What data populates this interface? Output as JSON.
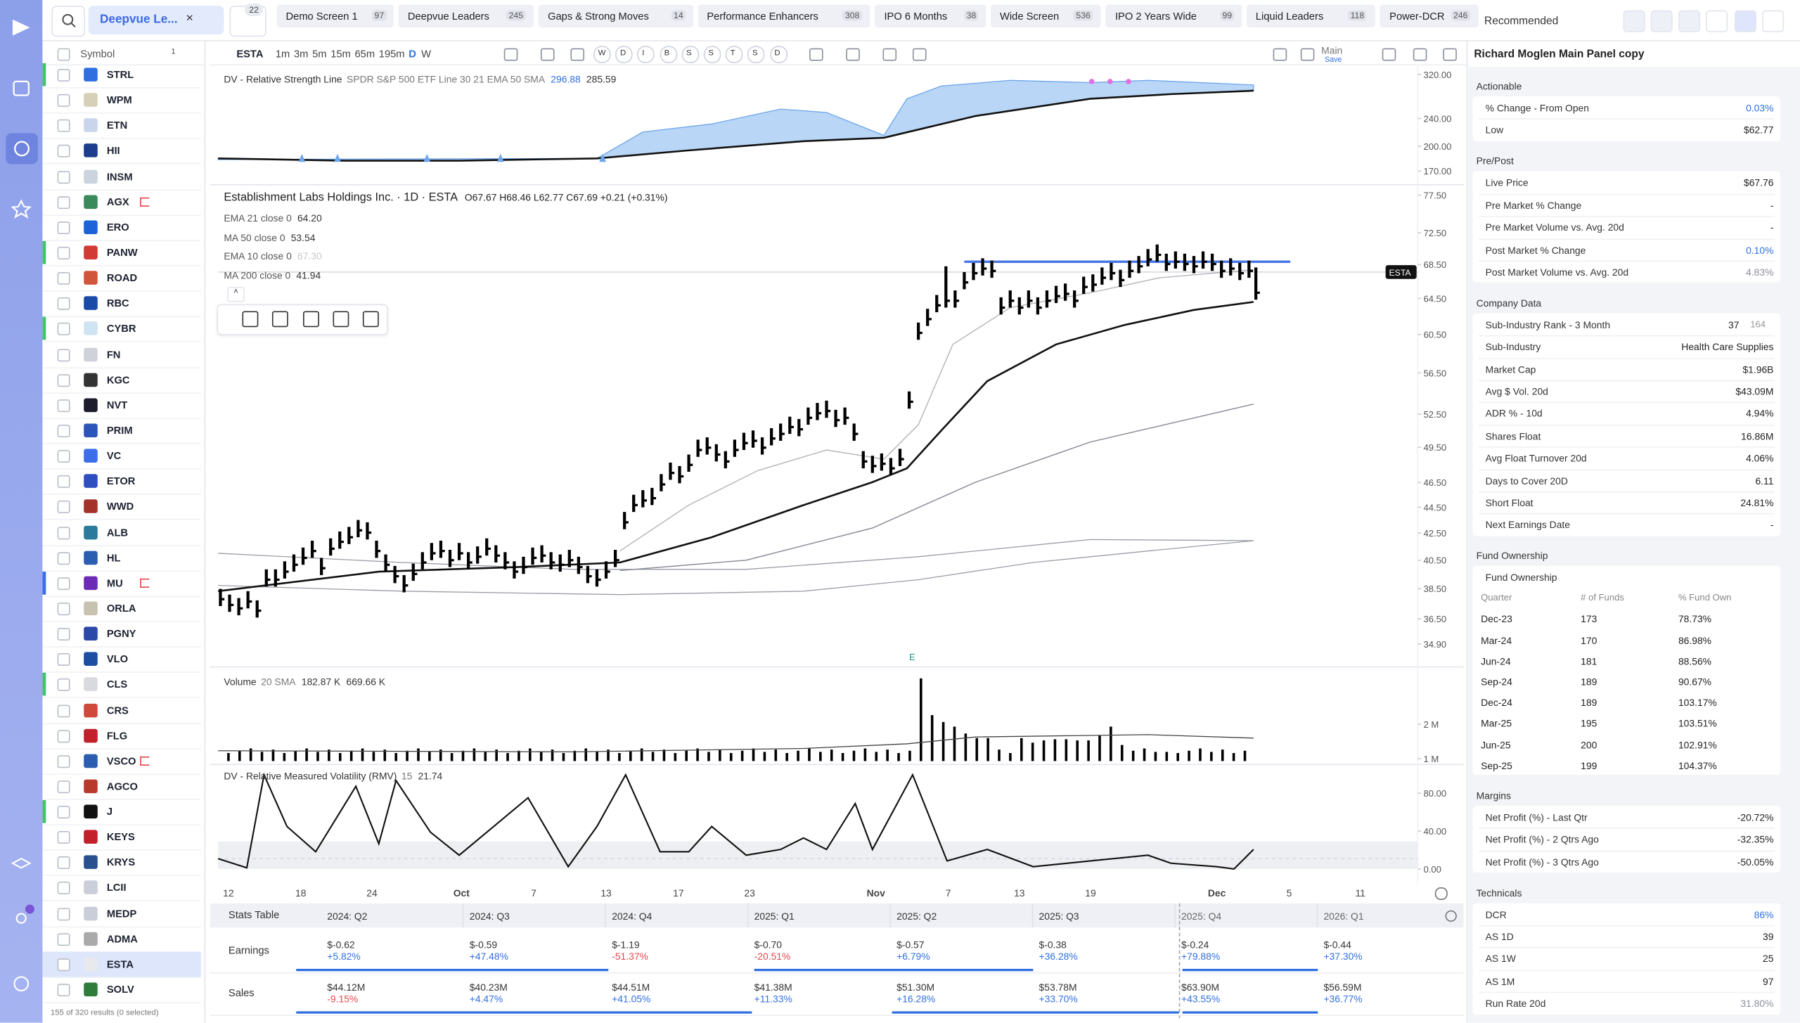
{
  "top_bar": {
    "screener": "Deepvue Le...",
    "filter_count": "22",
    "tabs": [
      {
        "name": "Demo Screen 1",
        "count": "97"
      },
      {
        "name": "Deepvue Leaders",
        "count": "245"
      },
      {
        "name": "Gaps & Strong Moves",
        "count": "14"
      },
      {
        "name": "Performance Enhancers",
        "count": "308"
      },
      {
        "name": "IPO 6 Months",
        "count": "38"
      },
      {
        "name": "Wide Screen",
        "count": "536"
      },
      {
        "name": "IPO 2 Years Wide",
        "count": "99"
      },
      {
        "name": "Liquid Leaders",
        "count": "118"
      },
      {
        "name": "Power-DCR",
        "count": "246"
      }
    ],
    "layout": "Recommended"
  },
  "symbol_list": {
    "header": "Symbol",
    "sort_count": "1",
    "symbols": [
      "STRL",
      "WPM",
      "ETN",
      "HII",
      "INSM",
      "AGX",
      "ERO",
      "PANW",
      "ROAD",
      "RBC",
      "CYBR",
      "FN",
      "KGC",
      "NVT",
      "PRIM",
      "VC",
      "ETOR",
      "WWD",
      "ALB",
      "HL",
      "MU",
      "ORLA",
      "PGNY",
      "VLO",
      "CLS",
      "CRS",
      "FLG",
      "VSCO",
      "AGCO",
      "J",
      "KEYS",
      "KRYS",
      "LCII",
      "MEDP",
      "ADMA",
      "ESTA",
      "SOLV"
    ],
    "selected": "ESTA",
    "footer": "155 of 320 results (0 selected)"
  },
  "chart_toolbar": {
    "symbol": "ESTA",
    "timeframes": [
      "1m",
      "3m",
      "5m",
      "15m",
      "65m",
      "195m",
      "D",
      "W"
    ],
    "active_timeframe": "D",
    "markers": [
      "W",
      "D",
      "I",
      "B",
      "S",
      "S",
      "T",
      "S",
      "D"
    ],
    "layout": "Main",
    "save": "Save"
  },
  "chart": {
    "rs": {
      "title": "DV - Relative Strength Line",
      "params": "SPDR S&P 500 ETF Line 30 21 EMA 50 SMA",
      "value1": "296.88",
      "value2": "285.59",
      "log_scale": true,
      "yticks": [
        {
          "value": 320,
          "label": "320.00"
        },
        {
          "value": 240,
          "label": "240.00"
        },
        {
          "value": 200,
          "label": "200.00"
        },
        {
          "value": 170,
          "label": "170.00"
        }
      ]
    },
    "price": {
      "title": "Establishment Labs Holdings Inc. · 1D · ESTA",
      "ohlc": "O67.67 H68.46 L62.77 C67.69 +0.21 (+0.31%)",
      "indicators": [
        {
          "name": "EMA 21 close 0",
          "value": "64.20"
        },
        {
          "name": "MA 50 close 0",
          "value": "53.54"
        },
        {
          "name": "EMA 10 close 0",
          "value": "67.30"
        },
        {
          "name": "MA 200 close 0",
          "value": "41.94"
        }
      ],
      "symbol_tag": "ESTA",
      "earnings_marker": "E",
      "log_scale": true,
      "yticks": [
        {
          "value": 77.5,
          "label": "77.50"
        },
        {
          "value": 72.5,
          "label": "72.50"
        },
        {
          "value": 68.5,
          "label": "68.50"
        },
        {
          "value": 64.5,
          "label": "64.50"
        },
        {
          "value": 60.5,
          "label": "60.50"
        },
        {
          "value": 56.5,
          "label": "56.50"
        },
        {
          "value": 52.5,
          "label": "52.50"
        },
        {
          "value": 49.5,
          "label": "49.50"
        },
        {
          "value": 46.5,
          "label": "46.50"
        },
        {
          "value": 44.5,
          "label": "44.50"
        },
        {
          "value": 42.5,
          "label": "42.50"
        },
        {
          "value": 40.5,
          "label": "40.50"
        },
        {
          "value": 38.5,
          "label": "38.50"
        },
        {
          "value": 36.5,
          "label": "36.50"
        },
        {
          "value": 34.9,
          "label": "34.90"
        }
      ]
    },
    "volume": {
      "title": "Volume",
      "params": "20 SMA",
      "value1": "182.87 K",
      "value2": "669.66 K",
      "yticks": [
        {
          "value": 2000000,
          "label": "2 M"
        },
        {
          "value": 1000000,
          "label": "1 M"
        }
      ]
    },
    "rmv": {
      "title": "DV - Relative Measured Volatility (RMV)",
      "params": "15",
      "value": "21.74",
      "yticks": [
        {
          "value": 80,
          "label": "80.00"
        },
        {
          "value": 40,
          "label": "40.00"
        },
        {
          "value": 0,
          "label": "0.00"
        }
      ]
    },
    "x_labels": [
      "12",
      "18",
      "24",
      "Oct",
      "7",
      "13",
      "17",
      "23",
      "Nov",
      "7",
      "13",
      "19",
      "Dec",
      "5",
      "11"
    ]
  },
  "stats_table": {
    "title": "Stats Table",
    "quarters": [
      "2024: Q2",
      "2024: Q3",
      "2024: Q4",
      "2025: Q1",
      "2025: Q2",
      "2025: Q3",
      "2025: Q4",
      "2026: Q1"
    ],
    "rows": [
      {
        "label": "Earnings",
        "cells": [
          [
            "$-0.62",
            "+5.82%"
          ],
          [
            "$-0.59",
            "+47.48%"
          ],
          [
            "$-1.19",
            "-51.37%"
          ],
          [
            "$-0.70",
            "-20.51%"
          ],
          [
            "$-0.57",
            "+6.79%"
          ],
          [
            "$-0.38",
            "+36.28%"
          ],
          [
            "$-0.24",
            "+79.88%"
          ],
          [
            "$-0.44",
            "+37.30%"
          ]
        ]
      },
      {
        "label": "Sales",
        "cells": [
          [
            "$44.12M",
            "-9.15%"
          ],
          [
            "$40.23M",
            "+4.47%"
          ],
          [
            "$44.51M",
            "+41.05%"
          ],
          [
            "$41.38M",
            "+11.33%"
          ],
          [
            "$51.30M",
            "+16.28%"
          ],
          [
            "$53.78M",
            "+33.70%"
          ],
          [
            "$63.90M",
            "+43.55%"
          ],
          [
            "$56.59M",
            "+36.77%"
          ]
        ]
      }
    ]
  },
  "panel": {
    "title": "Richard Moglen Main Panel copy",
    "sections": [
      {
        "title": "Actionable",
        "rows": [
          {
            "label": "% Change - From Open",
            "value": "0.03%",
            "color": "#2f6fe0"
          },
          {
            "label": "Low",
            "value": "$62.77"
          }
        ]
      },
      {
        "title": "Pre/Post",
        "rows": [
          {
            "label": "Live Price",
            "value": "$67.76"
          },
          {
            "label": "Pre Market % Change",
            "value": "-"
          },
          {
            "label": "Pre Market Volume vs. Avg. 20d",
            "value": "-"
          },
          {
            "label": "Post Market % Change",
            "value": "0.10%",
            "color": "#2f6fe0"
          },
          {
            "label": "Post Market Volume vs. Avg. 20d",
            "value": "4.83%",
            "color": "#8a8f9c"
          }
        ]
      },
      {
        "title": "Company Data",
        "rows": [
          {
            "label": "Sub-Industry Rank - 3 Month",
            "value": "37",
            "value2": "164"
          },
          {
            "label": "Sub-Industry",
            "value": "Health Care Supplies"
          },
          {
            "label": "Market Cap",
            "value": "$1.96B"
          },
          {
            "label": "Avg $ Vol. 20d",
            "value": "$43.09M"
          },
          {
            "label": "ADR % - 10d",
            "value": "4.94%"
          },
          {
            "label": "Shares Float",
            "value": "16.86M"
          },
          {
            "label": "Avg Float Turnover 20d",
            "value": "4.06%"
          },
          {
            "label": "Days to Cover 20D",
            "value": "6.11"
          },
          {
            "label": "Short Float",
            "value": "24.81%"
          },
          {
            "label": "Next Earnings Date",
            "value": "-"
          }
        ]
      },
      {
        "title": "Fund Ownership",
        "subtitle": "Fund Ownership",
        "columns": [
          "Quarter",
          "# of Funds",
          "% Fund Own"
        ],
        "table": [
          [
            "Dec-23",
            "173",
            "78.73%"
          ],
          [
            "Mar-24",
            "170",
            "86.98%"
          ],
          [
            "Jun-24",
            "181",
            "88.56%"
          ],
          [
            "Sep-24",
            "189",
            "90.67%"
          ],
          [
            "Dec-24",
            "189",
            "103.17%"
          ],
          [
            "Mar-25",
            "195",
            "103.51%"
          ],
          [
            "Jun-25",
            "200",
            "102.91%"
          ],
          [
            "Sep-25",
            "199",
            "104.37%"
          ]
        ]
      },
      {
        "title": "Margins",
        "rows": [
          {
            "label": "Net Profit (%) - Last Qtr",
            "value": "-20.72%"
          },
          {
            "label": "Net Profit (%) - 2 Qtrs Ago",
            "value": "-32.35%"
          },
          {
            "label": "Net Profit (%) - 3 Qtrs Ago",
            "value": "-50.05%"
          }
        ]
      },
      {
        "title": "Technicals",
        "rows": [
          {
            "label": "DCR",
            "value": "86%",
            "color": "#2f6fe0"
          },
          {
            "label": "AS 1D",
            "value": "39"
          },
          {
            "label": "AS 1W",
            "value": "25"
          },
          {
            "label": "AS 1M",
            "value": "97"
          },
          {
            "label": "Run Rate 20d",
            "value": "31.80%",
            "color": "#8a8f9c"
          }
        ]
      }
    ]
  }
}
